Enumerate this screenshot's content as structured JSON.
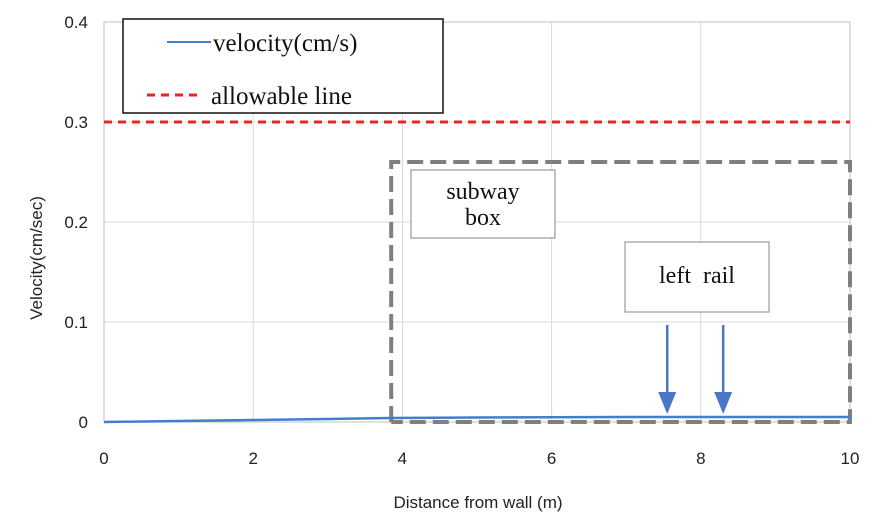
{
  "chart_data": {
    "type": "line",
    "title": "",
    "xlabel": "Distance from wall (m)",
    "ylabel": "Velocity(cm/sec)",
    "xlim": [
      0,
      10
    ],
    "ylim": [
      0,
      0.4
    ],
    "xticks": [
      0,
      2,
      4,
      6,
      8,
      10
    ],
    "yticks": [
      0,
      0.1,
      0.2,
      0.3,
      0.4
    ],
    "xtick_labels": [
      "0",
      "2",
      "4",
      "6",
      "8",
      "10"
    ],
    "ytick_labels": [
      "0",
      "0.1",
      "0.2",
      "0.3",
      "0.4"
    ],
    "grid": true,
    "legend_position": "top-left",
    "series": [
      {
        "name": "velocity(cm/s)",
        "color": "#3f7fd0",
        "style": "solid",
        "x": [
          0,
          1,
          2,
          3,
          3.85,
          5,
          6,
          7,
          8,
          9,
          10
        ],
        "y": [
          0,
          0.001,
          0.002,
          0.003,
          0.004,
          0.0045,
          0.0048,
          0.005,
          0.005,
          0.005,
          0.005
        ]
      },
      {
        "name": "allowable line",
        "color": "#e8262a",
        "style": "dashed",
        "x": [
          0,
          10
        ],
        "y": [
          0.3,
          0.3
        ]
      }
    ],
    "annotations": {
      "subway_box": {
        "label_line1": "subway",
        "label_line2": "box",
        "x_range": [
          3.85,
          10
        ],
        "y_range": [
          0,
          0.26
        ],
        "color": "#7f7f7f"
      },
      "rail_label": "left  rail",
      "rail_arrows_x": [
        7.55,
        8.3
      ],
      "arrow_color": "#4a78c8"
    }
  }
}
